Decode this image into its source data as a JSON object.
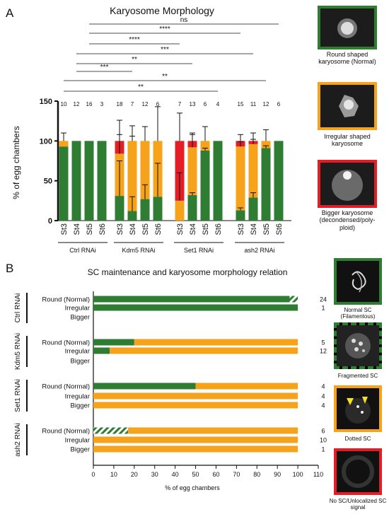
{
  "colors": {
    "normal": "#2e7d32",
    "irregular": "#f7a21b",
    "bigger": "#e41e26",
    "fragmented_hatch": "#2e7d32"
  },
  "panel_a_letter": "A",
  "panel_b_letter": "B",
  "chart_data": [
    {
      "type": "bar",
      "stacked": true,
      "title": "Karyosome Morphology",
      "ylabel": "% of egg chambers",
      "ylim": [
        0,
        150
      ],
      "yticks": [
        "0",
        "50",
        "100",
        "150"
      ],
      "groups": [
        {
          "label": "Ctrl RNAi",
          "stages": [
            "St3",
            "St4",
            "St5",
            "St6"
          ],
          "n": [
            "10",
            "12",
            "16",
            "3"
          ],
          "round": [
            93,
            100,
            100,
            100
          ],
          "irregular": [
            7,
            0,
            0,
            0
          ],
          "bigger": [
            0,
            0,
            0,
            0
          ],
          "err_top": [
            110,
            null,
            null,
            null
          ],
          "err_mid": [
            null,
            null,
            null,
            null
          ]
        },
        {
          "label": "Kdm5 RNAi",
          "stages": [
            "St3",
            "St4",
            "St5",
            "St6"
          ],
          "n": [
            "18",
            "7",
            "12",
            "6"
          ],
          "round": [
            31,
            12,
            27,
            30
          ],
          "irregular": [
            53,
            88,
            73,
            70
          ],
          "bigger": [
            16,
            0,
            0,
            0
          ],
          "err_top": [
            126,
            119,
            118,
            143
          ],
          "err_mid": [
            [
              84,
              108
            ],
            [
              100,
              null
            ],
            [
              null,
              null
            ],
            [
              null,
              null
            ]
          ],
          "err_low": [
            [
              31,
              75
            ],
            [
              12,
              30
            ],
            [
              27,
              45
            ],
            [
              30,
              72
            ]
          ]
        },
        {
          "label": "Set1 RNAi",
          "stages": [
            "St3",
            "St4",
            "St5",
            "St6"
          ],
          "n": [
            "7",
            "13",
            "6",
            "4"
          ],
          "round": [
            0,
            32,
            88,
            100
          ],
          "irregular": [
            25,
            60,
            12,
            0
          ],
          "bigger": [
            75,
            8,
            0,
            0
          ],
          "err_top": [
            135,
            110,
            118,
            null
          ],
          "err_mid": [
            [
              25,
              60
            ],
            [
              92,
              108
            ],
            [
              null,
              null
            ],
            [
              null,
              null
            ]
          ],
          "err_low": [
            [
              null,
              null
            ],
            [
              32,
              null
            ],
            [
              88,
              null
            ],
            [
              null,
              null
            ]
          ]
        },
        {
          "label": "ash2 RNAi",
          "stages": [
            "St3",
            "St4",
            "St5",
            "St6"
          ],
          "n": [
            "15",
            "11",
            "12",
            "6"
          ],
          "round": [
            13,
            29,
            91,
            100
          ],
          "irregular": [
            80,
            67,
            9,
            0
          ],
          "bigger": [
            7,
            4,
            0,
            0
          ],
          "err_top": [
            108,
            110,
            114,
            null
          ],
          "err_mid": [
            [
              93,
              null
            ],
            [
              96,
              null
            ],
            [
              null,
              null
            ],
            [
              null,
              null
            ]
          ],
          "err_low": [
            [
              13,
              null
            ],
            [
              29,
              35
            ],
            [
              91,
              null
            ],
            [
              null,
              null
            ]
          ]
        }
      ],
      "significance": [
        {
          "label": "ns"
        },
        {
          "label": "****"
        },
        {
          "label": "****"
        },
        {
          "label": "***"
        },
        {
          "label": "**"
        },
        {
          "label": "***"
        },
        {
          "label": "**"
        },
        {
          "label": "**"
        }
      ]
    },
    {
      "type": "bar",
      "orientation": "horizontal",
      "stacked": true,
      "title": "SC maintenance and karyosome morphology relation",
      "xlabel": "% of egg chambers",
      "xlim": [
        0,
        110
      ],
      "xticks": [
        "0",
        "10",
        "20",
        "30",
        "40",
        "50",
        "60",
        "70",
        "80",
        "90",
        "100",
        "110"
      ],
      "groups": [
        {
          "label": "Ctrl RNAi",
          "rows": [
            {
              "label": "Round (Normal)",
              "n": "24",
              "normal": 96,
              "fragmented": 4,
              "dotted": 0
            },
            {
              "label": "Irregular",
              "n": "1",
              "normal": 100,
              "fragmented": 0,
              "dotted": 0
            },
            {
              "label": "Bigger",
              "n": "",
              "normal": 0,
              "fragmented": 0,
              "dotted": 0
            }
          ]
        },
        {
          "label": "Kdm5 RNAi",
          "rows": [
            {
              "label": "Round (Normal)",
              "n": "5",
              "normal": 20,
              "fragmented": 0,
              "dotted": 80
            },
            {
              "label": "Irregular",
              "n": "12",
              "normal": 8,
              "fragmented": 0,
              "dotted": 92
            },
            {
              "label": "Bigger",
              "n": "",
              "normal": 0,
              "fragmented": 0,
              "dotted": 0
            }
          ]
        },
        {
          "label": "Set1 RNAi",
          "rows": [
            {
              "label": "Round (Normal)",
              "n": "4",
              "normal": 50,
              "fragmented": 0,
              "dotted": 50
            },
            {
              "label": "Irregular",
              "n": "4",
              "normal": 0,
              "fragmented": 0,
              "dotted": 100
            },
            {
              "label": "Bigger",
              "n": "4",
              "normal": 0,
              "fragmented": 0,
              "dotted": 100
            }
          ]
        },
        {
          "label": "ash2 RNAi",
          "rows": [
            {
              "label": "Round (Normal)",
              "n": "6",
              "normal": 0,
              "fragmented": 17,
              "dotted": 83
            },
            {
              "label": "Irregular",
              "n": "10",
              "normal": 0,
              "fragmented": 0,
              "dotted": 100
            },
            {
              "label": "Bigger",
              "n": "1",
              "normal": 0,
              "fragmented": 0,
              "dotted": 100
            }
          ]
        }
      ]
    }
  ],
  "legend_a": [
    {
      "caption": "Round shaped karyosome (Normal)",
      "color": "normal"
    },
    {
      "caption": "Irregular shaped karyosome",
      "color": "irregular"
    },
    {
      "caption": "Bigger karyosome (decondensed/poly-ploid)",
      "color": "bigger"
    }
  ],
  "legend_b": [
    {
      "caption": "Normal SC (Filamentous)",
      "color": "normal"
    },
    {
      "caption": "Fragmented SC",
      "color": "normal"
    },
    {
      "caption": "Dotted SC",
      "color": "irregular"
    },
    {
      "caption": "No SC/Unlocalized SC signal",
      "color": "bigger"
    }
  ]
}
